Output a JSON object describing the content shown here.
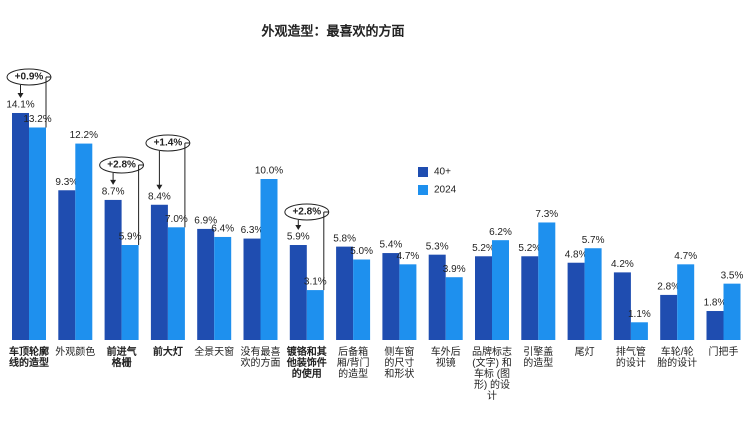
{
  "chart_data": {
    "type": "bar",
    "title": "外观造型：最喜欢的方面",
    "categories": [
      "车顶轮廓\n线的造型",
      "外观颜色",
      "前进气\n格栅",
      "前大灯",
      "全景天窗",
      "没有最喜\n欢的方面",
      "镀铬和其\n他装饰件\n的使用",
      "后备箱\n厢/背门\n的造型",
      "侧车窗\n的尺寸\n和形状",
      "车外后\n视镜",
      "品牌标志\n(文字) 和\n车标 (图\n形) 的设\n计",
      "引擎盖\n的造型",
      "尾灯",
      "排气管\n的设计",
      "车轮/轮\n胎的设计",
      "门把手"
    ],
    "series": [
      {
        "name": "40+",
        "color": "#1f4db0",
        "values": [
          14.1,
          9.3,
          8.7,
          8.4,
          6.9,
          6.3,
          5.9,
          5.8,
          5.4,
          5.3,
          5.2,
          5.2,
          4.8,
          4.2,
          2.8,
          1.8
        ],
        "value_labels": [
          "14.1%",
          "9.3%",
          "8.7%",
          "8.4%",
          "6.9%",
          "6.3%",
          "5.9%",
          "5.8%",
          "5.4%",
          "5.3%",
          "5.2%",
          "5.2%",
          "4.8%",
          "4.2%",
          "2.8%",
          "1.8%"
        ]
      },
      {
        "name": "2024",
        "color": "#1e90ee",
        "values": [
          13.2,
          12.2,
          5.9,
          7.0,
          6.4,
          10.0,
          3.1,
          5.0,
          4.7,
          3.9,
          6.2,
          7.3,
          5.7,
          1.1,
          4.7,
          3.5
        ],
        "value_labels": [
          "13.2%",
          "12.2%",
          "5.9%",
          "7.0%",
          "6.4%",
          "10.0%",
          "3.1%",
          "5.0%",
          "4.7%",
          "3.9%",
          "6.2%",
          "7.3%",
          "5.7%",
          "1.1%",
          "4.7%",
          "3.5%"
        ]
      }
    ],
    "annotations": [
      "+0.9%",
      "+2.8%",
      "+1.4%",
      "+2.8%"
    ]
  }
}
